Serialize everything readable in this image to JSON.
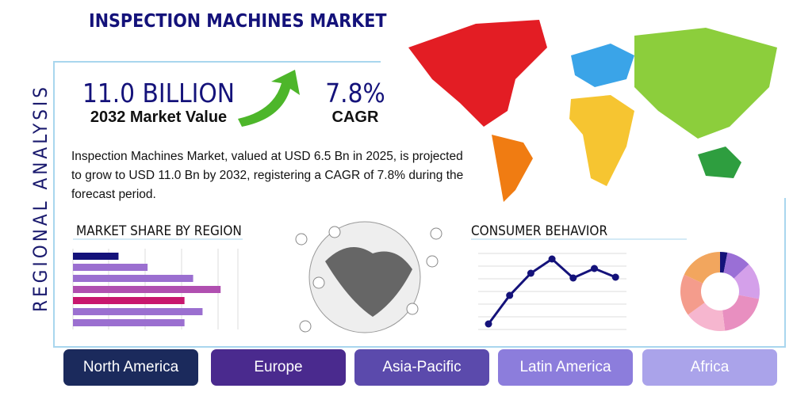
{
  "header": {
    "title": "INSPECTION MACHINES MARKET"
  },
  "side_label": "REGIONAL ANALYSIS",
  "stats": {
    "market_value": "11.0 BILLION",
    "market_value_label": "2032 Market Value",
    "cagr": "7.8%",
    "cagr_label": "CAGR"
  },
  "description": "Inspection Machines Market, valued at USD 6.5 Bn in 2025, is projected to grow to USD 11.0 Bn by 2032, registering a CAGR of 7.8% during the forecast period.",
  "market_share": {
    "title": "MARKET SHARE BY REGION",
    "xlim": [
      0,
      210
    ],
    "values": [
      58,
      95,
      153,
      188,
      142,
      165,
      142
    ],
    "colors": [
      "#14127a",
      "#9b6fd0",
      "#9b6fd0",
      "#b04fb0",
      "#c8166e",
      "#9b6fd0",
      "#9b6fd0"
    ]
  },
  "consumer_behavior": {
    "title": "CONSUMER BEHAVIOR",
    "ylim": [
      0,
      100
    ],
    "color": "#14127a",
    "values": [
      11,
      47,
      75,
      93,
      69,
      81,
      70
    ]
  },
  "donut": {
    "values": [
      3,
      10,
      15,
      20,
      17,
      17,
      18
    ],
    "colors": [
      "#14127a",
      "#9a6fd6",
      "#d4a0ea",
      "#e88fc0",
      "#f6b6cf",
      "#f49c8c",
      "#f2a65e"
    ]
  },
  "regions": [
    {
      "name": "North America",
      "color": "#1b2a5c"
    },
    {
      "name": "Europe",
      "color": "#4a2a8e"
    },
    {
      "name": "Asia-Pacific",
      "color": "#5b4aac"
    },
    {
      "name": "Latin America",
      "color": "#8c7ddc"
    },
    {
      "name": "Africa",
      "color": "#aaa3ea"
    }
  ]
}
